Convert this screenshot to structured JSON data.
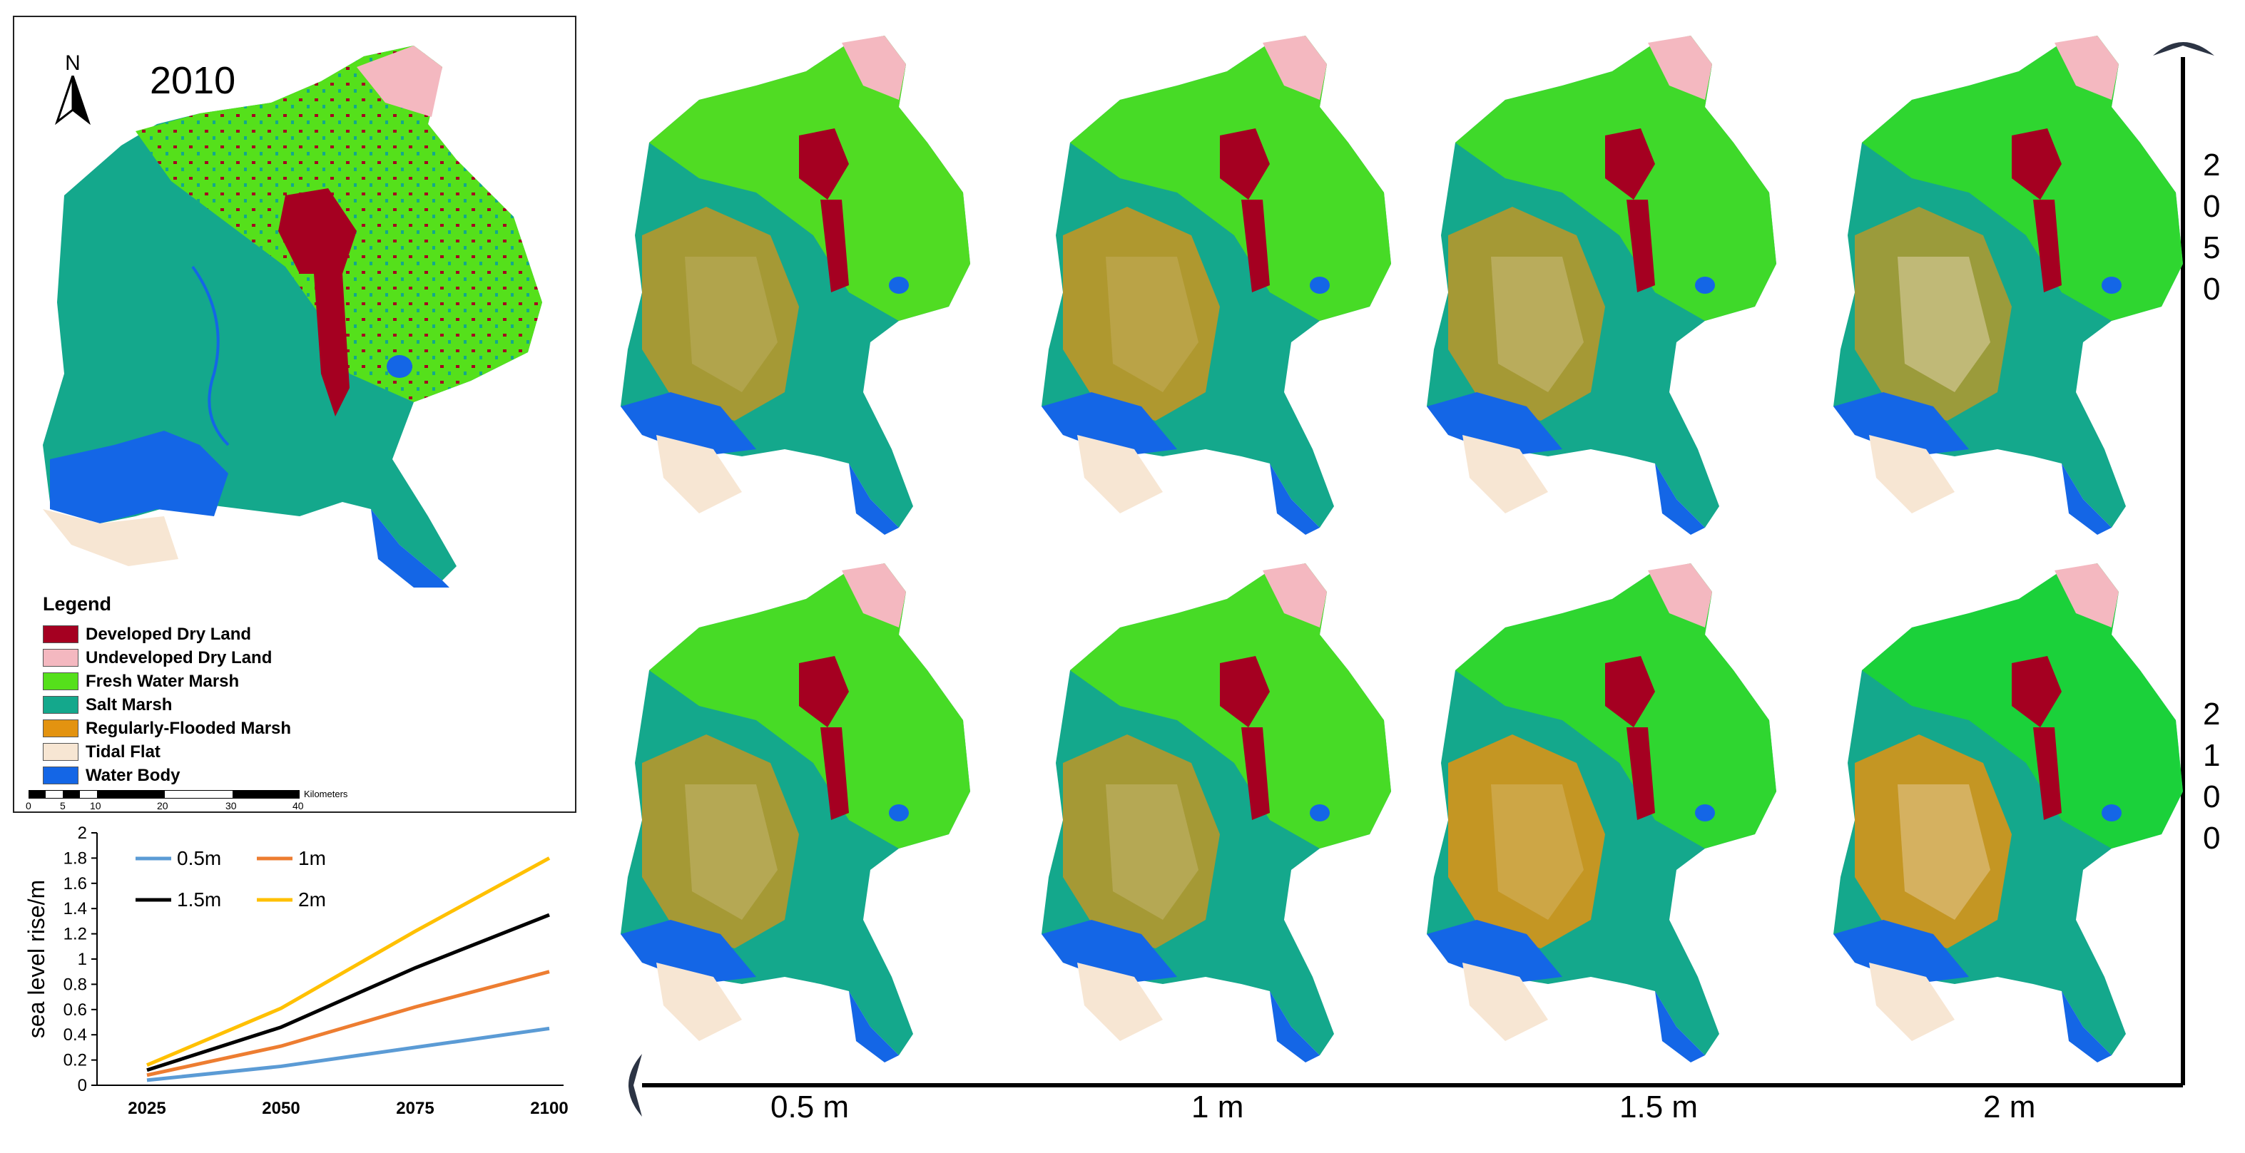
{
  "inset_map": {
    "year": "2010",
    "north_label": "N",
    "legend": {
      "title": "Legend",
      "items": [
        {
          "label": "Developed Dry Land",
          "color": "#a50021"
        },
        {
          "label": "Undeveloped Dry Land",
          "color": "#f4b8c0"
        },
        {
          "label": "Fresh Water Marsh",
          "color": "#55e01b"
        },
        {
          "label": "Salt Marsh",
          "color": "#14a88c"
        },
        {
          "label": "Regularly-Flooded Marsh",
          "color": "#e39310"
        },
        {
          "label": "Tidal Flat",
          "color": "#f7e6d3"
        },
        {
          "label": "Water Body",
          "color": "#1466e6"
        }
      ]
    },
    "scale_bar": {
      "unit": "Kilometers",
      "ticks": [
        "0",
        "5",
        "10",
        "20",
        "30",
        "40"
      ]
    }
  },
  "scenario_grid": {
    "columns": [
      "0.5 m",
      "1 m",
      "1.5 m",
      "2 m"
    ],
    "rows": [
      {
        "year": "2050",
        "digits": [
          "2",
          "0",
          "5",
          "0"
        ]
      },
      {
        "year": "2100",
        "digits": [
          "2",
          "1",
          "0",
          "0"
        ]
      }
    ]
  },
  "chart_data": {
    "type": "line",
    "ylabel": "sea level rise/m",
    "xlabel": "",
    "x": [
      2025,
      2050,
      2075,
      2100
    ],
    "x_tick_labels": [
      "2025",
      "2050",
      "2075",
      "2100"
    ],
    "y_tick_labels": [
      "0",
      "0.2",
      "0.4",
      "0.6",
      "0.8",
      "1",
      "1.2",
      "1.4",
      "1.6",
      "1.8",
      "2"
    ],
    "ylim": [
      0,
      2
    ],
    "grid": false,
    "legend_position": "top-left",
    "series": [
      {
        "name": "0.5m",
        "color": "#5b9bd5",
        "values": [
          0.04,
          0.15,
          0.3,
          0.45
        ]
      },
      {
        "name": "1m",
        "color": "#ed7d31",
        "values": [
          0.08,
          0.31,
          0.62,
          0.9
        ]
      },
      {
        "name": "1.5m",
        "color": "#000000",
        "values": [
          0.12,
          0.46,
          0.93,
          1.35
        ]
      },
      {
        "name": "2m",
        "color": "#ffc000",
        "values": [
          0.16,
          0.61,
          1.22,
          1.8
        ]
      }
    ]
  }
}
